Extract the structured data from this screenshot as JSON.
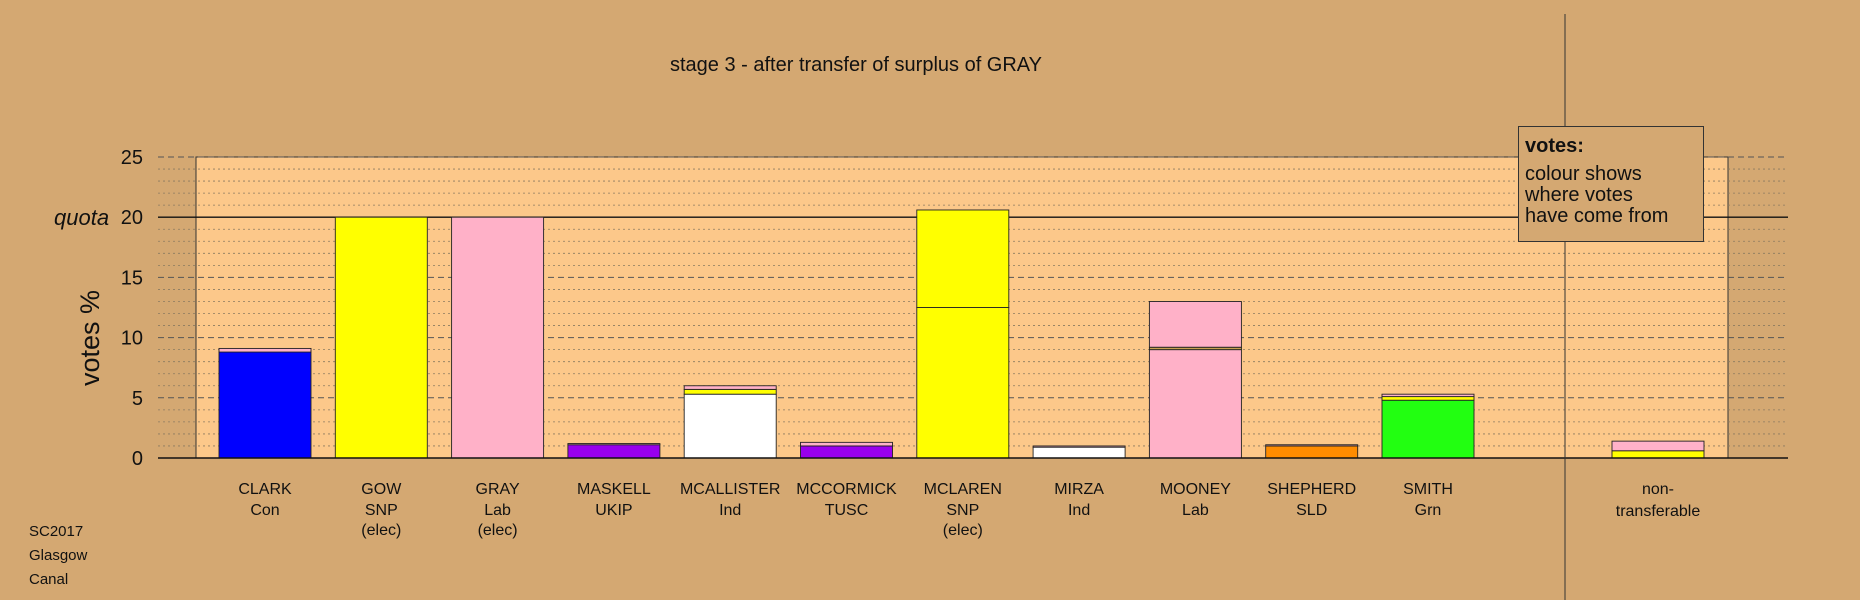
{
  "chart_data": {
    "type": "bar",
    "title": "stage 3 - after transfer of surplus of GRAY",
    "ylabel": "votes %",
    "ylim": [
      0,
      25
    ],
    "yticks": [
      0,
      5,
      10,
      15,
      20,
      25
    ],
    "quota": {
      "label": "quota",
      "value": 20
    },
    "grid": true,
    "candidates": [
      {
        "name": "CLARK",
        "party": "Con",
        "note": "",
        "segments": [
          {
            "value": 8.8,
            "color": "#0000ff"
          },
          {
            "value": 0.3,
            "color": "#ffb1c8"
          }
        ]
      },
      {
        "name": "GOW",
        "party": "SNP",
        "note": "(elec)",
        "segments": [
          {
            "value": 20.0,
            "color": "#ffff00"
          }
        ]
      },
      {
        "name": "GRAY",
        "party": "Lab",
        "note": "(elec)",
        "segments": [
          {
            "value": 20.0,
            "color": "#ffb1c8"
          }
        ]
      },
      {
        "name": "MASKELL",
        "party": "UKIP",
        "note": "",
        "segments": [
          {
            "value": 1.1,
            "color": "#9900ee"
          },
          {
            "value": 0.1,
            "color": "#ffb1c8"
          }
        ]
      },
      {
        "name": "MCALLISTER",
        "party": "Ind",
        "note": "",
        "segments": [
          {
            "value": 5.3,
            "color": "#ffffff"
          },
          {
            "value": 0.4,
            "color": "#ffff00"
          },
          {
            "value": 0.3,
            "color": "#ffb1c8"
          }
        ]
      },
      {
        "name": "MCCORMICK",
        "party": "TUSC",
        "note": "",
        "segments": [
          {
            "value": 1.0,
            "color": "#9900ee"
          },
          {
            "value": 0.3,
            "color": "#ffb1c8"
          }
        ]
      },
      {
        "name": "MCLAREN",
        "party": "SNP",
        "note": "(elec)",
        "segments": [
          {
            "value": 12.5,
            "color": "#ffff00"
          },
          {
            "value": 8.1,
            "color": "#ffff00"
          }
        ]
      },
      {
        "name": "MIRZA",
        "party": "Ind",
        "note": "",
        "segments": [
          {
            "value": 0.9,
            "color": "#ffffff"
          },
          {
            "value": 0.1,
            "color": "#ffb1c8"
          }
        ]
      },
      {
        "name": "MOONEY",
        "party": "Lab",
        "note": "",
        "segments": [
          {
            "value": 9.0,
            "color": "#ffb1c8"
          },
          {
            "value": 0.2,
            "color": "#c8a050"
          },
          {
            "value": 3.8,
            "color": "#ffb1c8"
          }
        ]
      },
      {
        "name": "SHEPHERD",
        "party": "SLD",
        "note": "",
        "segments": [
          {
            "value": 1.0,
            "color": "#ff8c00"
          },
          {
            "value": 0.1,
            "color": "#ffb1c8"
          }
        ]
      },
      {
        "name": "SMITH",
        "party": "Grn",
        "note": "",
        "segments": [
          {
            "value": 4.8,
            "color": "#22ff11"
          },
          {
            "value": 0.3,
            "color": "#ffff00"
          },
          {
            "value": 0.2,
            "color": "#ffb1c8"
          }
        ]
      }
    ],
    "non_transferable": {
      "label": "non-\ntransferable",
      "segments": [
        {
          "value": 0.6,
          "color": "#ffff00"
        },
        {
          "value": 0.8,
          "color": "#ffb1c8"
        }
      ]
    }
  },
  "legend": {
    "title": "votes:",
    "text": "colour shows\nwhere votes\nhave come from"
  },
  "footer": {
    "lines": [
      "SC2017",
      "Glasgow",
      "Canal"
    ]
  },
  "colors": {
    "background": "#d4a872",
    "plot_background": "#fcc88a"
  }
}
